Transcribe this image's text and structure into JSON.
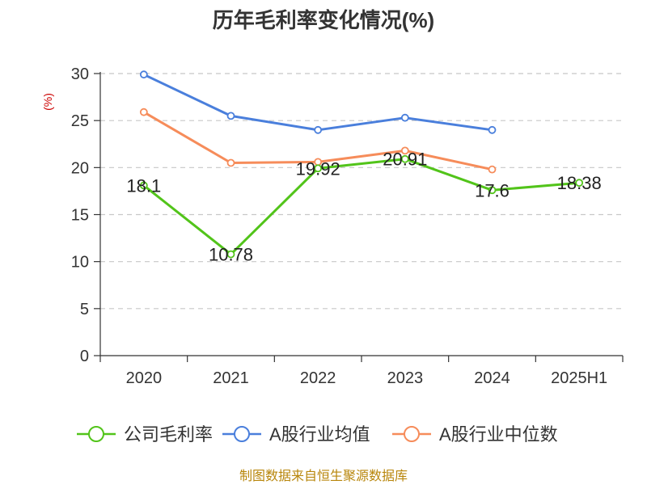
{
  "chart_data": {
    "type": "line",
    "title": "历年毛利率变化情况(%)",
    "ylabel": "(%)",
    "xlabel": "",
    "categories": [
      "2020",
      "2021",
      "2022",
      "2023",
      "2024",
      "2025H1"
    ],
    "ylim": [
      0,
      30
    ],
    "yticks": [
      0,
      5,
      10,
      15,
      20,
      25,
      30
    ],
    "grid": true,
    "legend_position": "bottom",
    "series": [
      {
        "name": "公司毛利率",
        "color": "#52c41a",
        "values": [
          18.1,
          10.78,
          19.92,
          20.91,
          17.6,
          18.38
        ],
        "labels": [
          "18.1",
          "10.78",
          "19.92",
          "20.91",
          "17.6",
          "18.38"
        ]
      },
      {
        "name": "A股行业均值",
        "color": "#4a7fdc",
        "values": [
          29.9,
          25.5,
          24.0,
          25.3,
          24.0,
          null
        ]
      },
      {
        "name": "A股行业中位数",
        "color": "#f68c5a",
        "values": [
          25.9,
          20.5,
          20.6,
          21.8,
          19.8,
          null
        ]
      }
    ]
  },
  "source": "制图数据来自恒生聚源数据库"
}
